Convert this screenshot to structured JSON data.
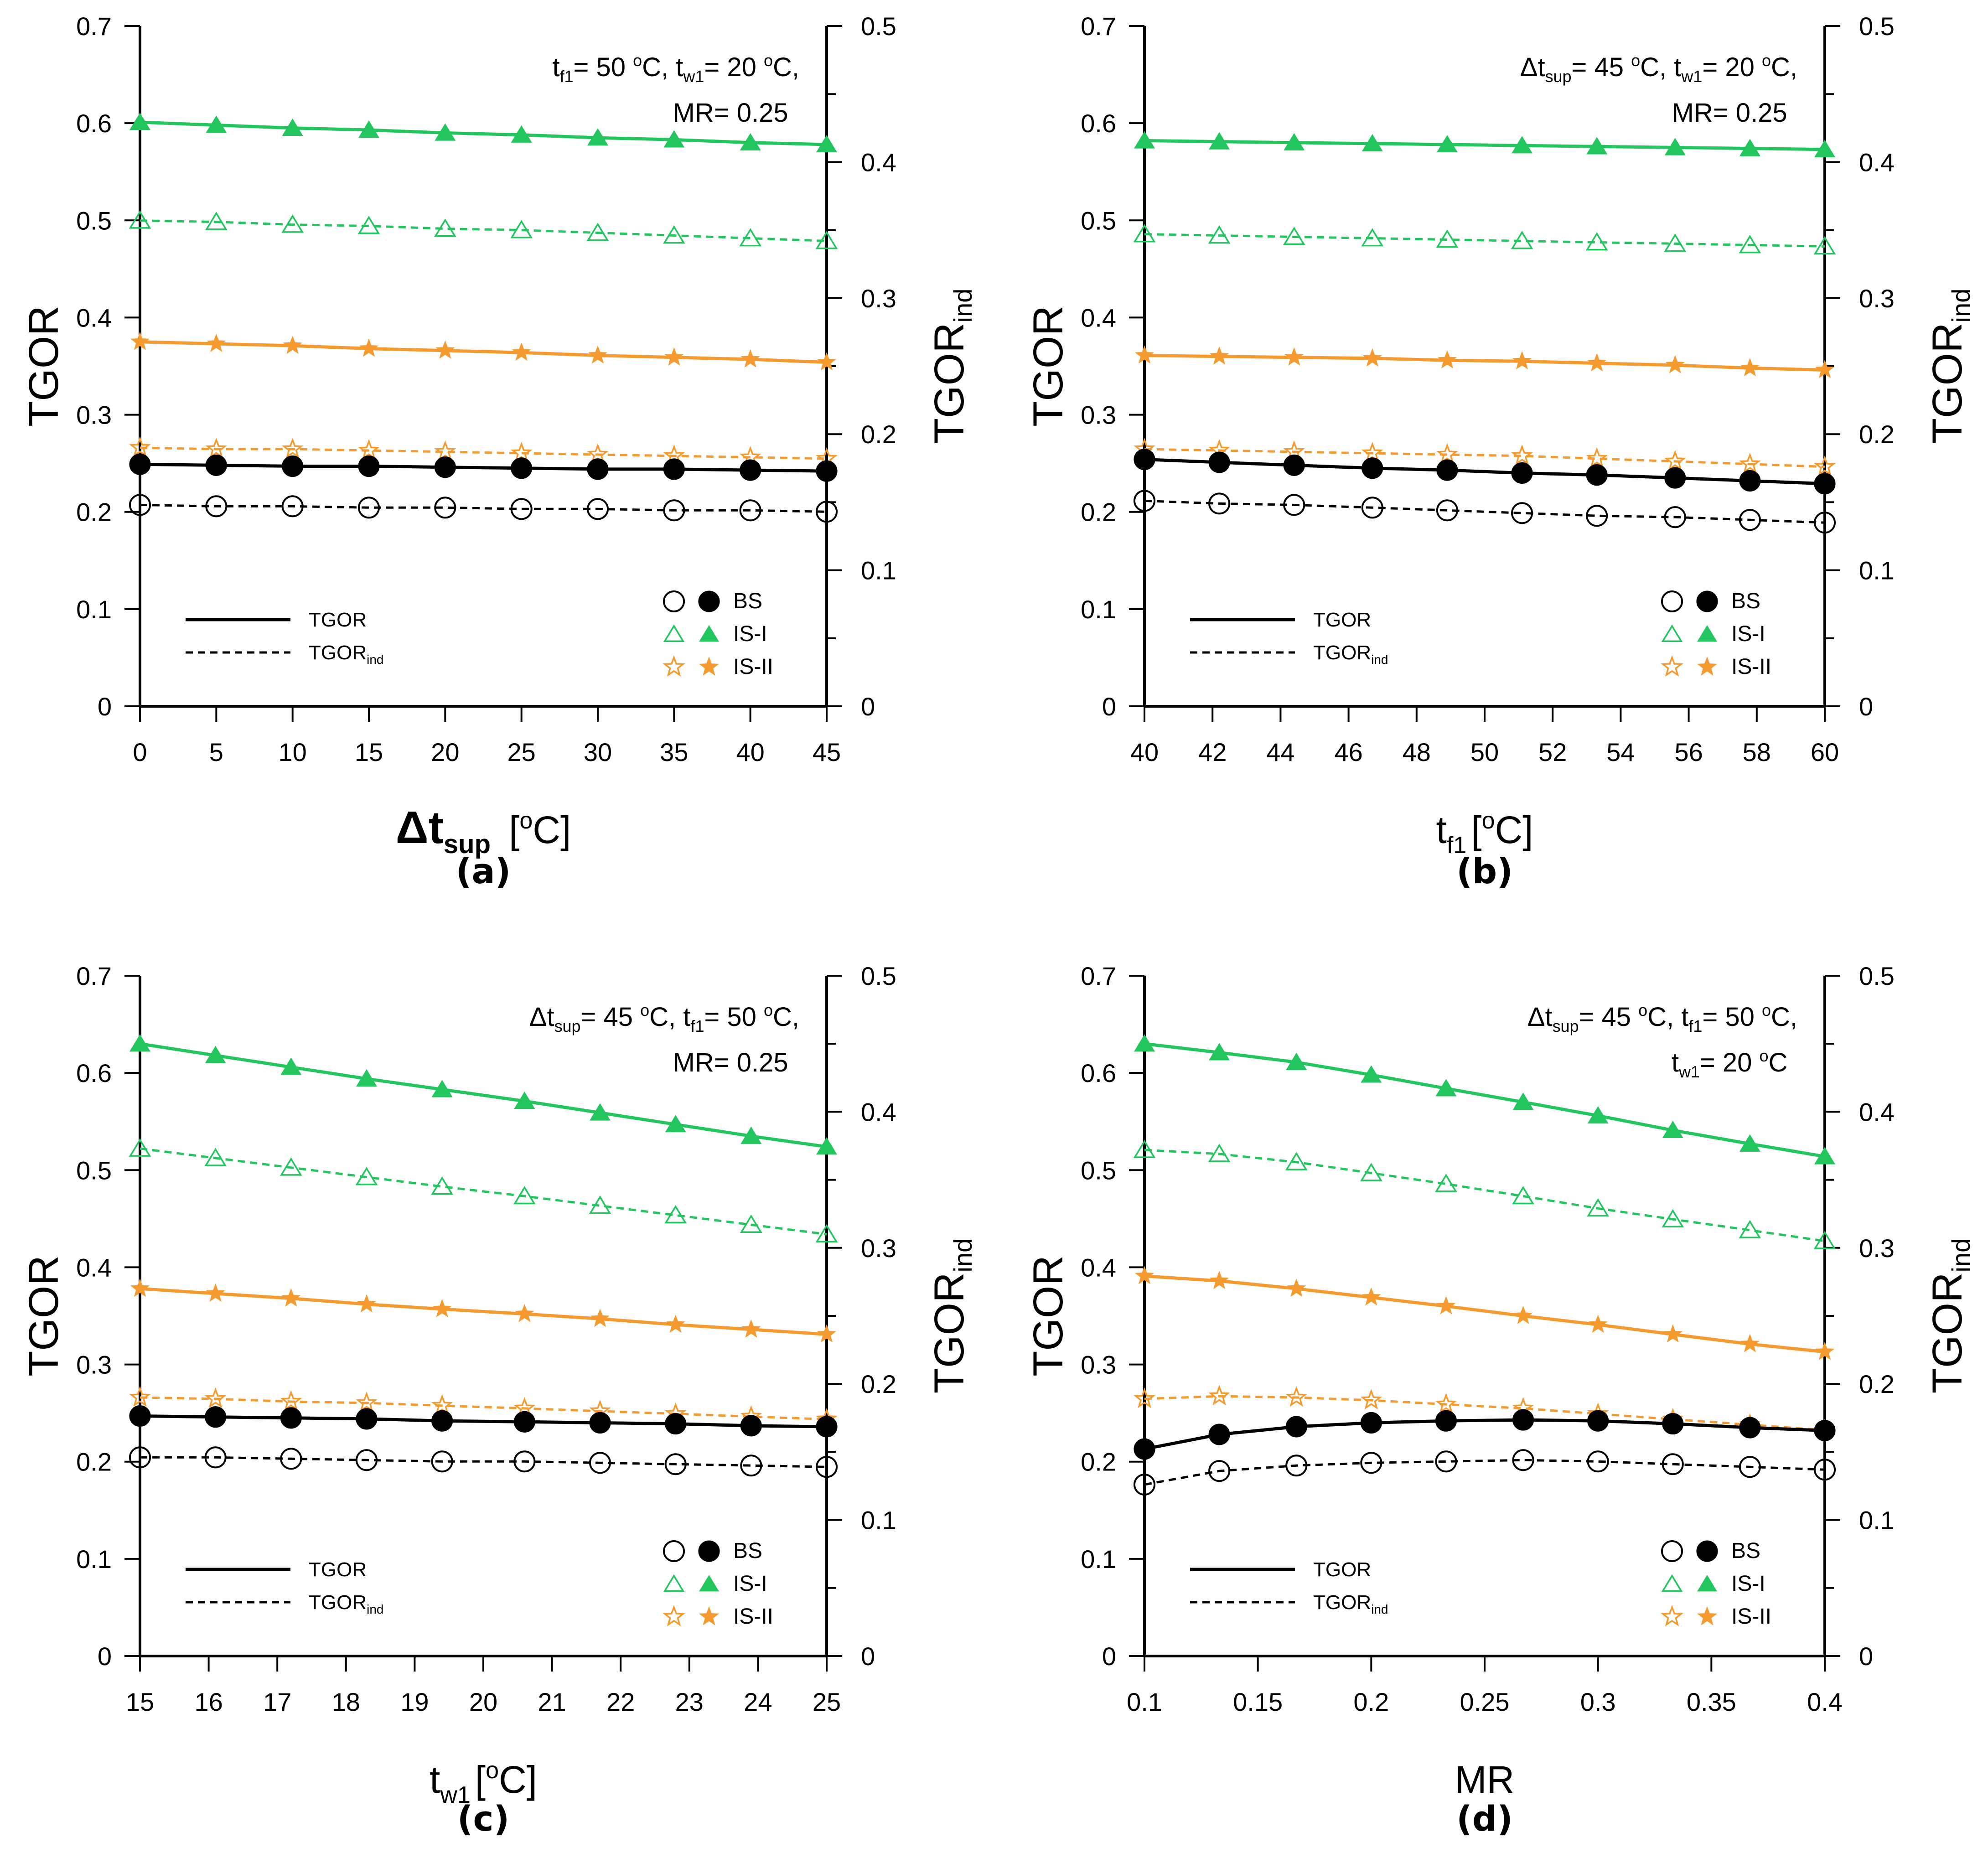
{
  "colors": {
    "bs": "#000000",
    "is1": "#22c55e",
    "is2": "#f59a2f",
    "axis": "#000000"
  },
  "legend": {
    "line_items": [
      "TGOR",
      "TGOR"
    ],
    "line_sub": "ind",
    "marker_items": [
      "BS",
      "IS-I",
      "IS-II"
    ]
  },
  "chart_data": [
    {
      "panel": "a",
      "type": "line",
      "title": "(a)",
      "xlabel": "Δt",
      "xlabel_sub": "sup",
      "xlabel_unit": "[",
      "xlabel_unit_sup": "o",
      "xlabel_unit_end": "C]",
      "ylabel": "TGOR",
      "y2label": "TGOR",
      "y2label_sub": "ind",
      "xlim": [
        0,
        45
      ],
      "ylim": [
        0,
        0.7
      ],
      "y2lim": [
        0,
        0.5
      ],
      "x_ticks": [
        "0",
        "5",
        "10",
        "15",
        "20",
        "25",
        "30",
        "35",
        "40",
        "45"
      ],
      "y_ticks": [
        "0",
        "0.1",
        "0.2",
        "0.3",
        "0.4",
        "0.5",
        "0.6",
        "0.7"
      ],
      "y2_ticks": [
        "0",
        "0.1",
        "0.2",
        "0.3",
        "0.4",
        "0.5"
      ],
      "annotation": {
        "line1": [
          {
            "t": "t"
          },
          {
            "t": "f1",
            "sub": true
          },
          {
            "t": "= 50 "
          },
          {
            "t": "o",
            "sup": true
          },
          {
            "t": "C, t"
          },
          {
            "t": "w1",
            "sub": true
          },
          {
            "t": "= 20 "
          },
          {
            "t": "o",
            "sup": true
          },
          {
            "t": "C,"
          }
        ],
        "line2": [
          {
            "t": "MR= 0.25"
          }
        ]
      },
      "x": [
        0,
        5,
        10,
        15,
        20,
        25,
        30,
        35,
        40,
        45
      ],
      "series": [
        {
          "name": "IS-I",
          "metric": "TGOR",
          "values": [
            0.601,
            0.598,
            0.595,
            0.593,
            0.59,
            0.588,
            0.585,
            0.583,
            0.58,
            0.578
          ]
        },
        {
          "name": "IS-I",
          "metric": "TGOR_ind",
          "values": [
            0.357,
            0.356,
            0.354,
            0.353,
            0.351,
            0.35,
            0.348,
            0.346,
            0.344,
            0.342
          ]
        },
        {
          "name": "IS-II",
          "metric": "TGOR",
          "values": [
            0.375,
            0.373,
            0.371,
            0.368,
            0.366,
            0.364,
            0.361,
            0.359,
            0.357,
            0.354
          ]
        },
        {
          "name": "IS-II",
          "metric": "TGOR_ind",
          "values": [
            0.19,
            0.189,
            0.189,
            0.188,
            0.187,
            0.186,
            0.185,
            0.184,
            0.183,
            0.182
          ]
        },
        {
          "name": "BS",
          "metric": "TGOR",
          "values": [
            0.249,
            0.248,
            0.247,
            0.247,
            0.246,
            0.245,
            0.244,
            0.244,
            0.243,
            0.242
          ]
        },
        {
          "name": "BS",
          "metric": "TGOR_ind",
          "values": [
            0.148,
            0.147,
            0.147,
            0.146,
            0.146,
            0.145,
            0.145,
            0.144,
            0.144,
            0.143
          ]
        }
      ]
    },
    {
      "panel": "b",
      "type": "line",
      "title": "(b)",
      "xlabel": "t",
      "xlabel_sub": "f1",
      "xlabel_unit": "[",
      "xlabel_unit_sup": "o",
      "xlabel_unit_end": "C]",
      "ylabel": "TGOR",
      "y2label": "TGOR",
      "y2label_sub": "ind",
      "xlim": [
        40,
        60
      ],
      "ylim": [
        0,
        0.7
      ],
      "y2lim": [
        0,
        0.5
      ],
      "x_ticks": [
        "40",
        "42",
        "44",
        "46",
        "48",
        "50",
        "52",
        "54",
        "56",
        "58",
        "60"
      ],
      "y_ticks": [
        "0",
        "0.1",
        "0.2",
        "0.3",
        "0.4",
        "0.5",
        "0.6",
        "0.7"
      ],
      "y2_ticks": [
        "0",
        "0.1",
        "0.2",
        "0.3",
        "0.4",
        "0.5"
      ],
      "annotation": {
        "line1": [
          {
            "t": "Δt"
          },
          {
            "t": "sup",
            "sub": true
          },
          {
            "t": "= 45 "
          },
          {
            "t": "o",
            "sup": true
          },
          {
            "t": "C, t"
          },
          {
            "t": "w1",
            "sub": true
          },
          {
            "t": "= 20 "
          },
          {
            "t": "o",
            "sup": true
          },
          {
            "t": "C,"
          }
        ],
        "line2": [
          {
            "t": "MR= 0.25"
          }
        ]
      },
      "x": [
        40,
        42.2,
        44.4,
        46.7,
        48.9,
        51.1,
        53.3,
        55.6,
        57.8,
        60
      ],
      "series": [
        {
          "name": "IS-I",
          "metric": "TGOR",
          "values": [
            0.582,
            0.581,
            0.58,
            0.579,
            0.578,
            0.577,
            0.576,
            0.575,
            0.574,
            0.573
          ]
        },
        {
          "name": "IS-I",
          "metric": "TGOR_ind",
          "values": [
            0.347,
            0.346,
            0.345,
            0.344,
            0.343,
            0.342,
            0.341,
            0.34,
            0.339,
            0.338
          ]
        },
        {
          "name": "IS-II",
          "metric": "TGOR",
          "values": [
            0.361,
            0.36,
            0.359,
            0.358,
            0.356,
            0.355,
            0.353,
            0.351,
            0.348,
            0.346
          ]
        },
        {
          "name": "IS-II",
          "metric": "TGOR_ind",
          "values": [
            0.189,
            0.188,
            0.187,
            0.186,
            0.185,
            0.184,
            0.182,
            0.18,
            0.178,
            0.176
          ]
        },
        {
          "name": "BS",
          "metric": "TGOR",
          "values": [
            0.254,
            0.251,
            0.248,
            0.245,
            0.243,
            0.24,
            0.238,
            0.235,
            0.232,
            0.229
          ]
        },
        {
          "name": "BS",
          "metric": "TGOR_ind",
          "values": [
            0.151,
            0.149,
            0.148,
            0.146,
            0.144,
            0.142,
            0.14,
            0.139,
            0.137,
            0.135
          ]
        }
      ]
    },
    {
      "panel": "c",
      "type": "line",
      "title": "(c)",
      "xlabel": "t",
      "xlabel_sub": "w1",
      "xlabel_unit": "[",
      "xlabel_unit_sup": "o",
      "xlabel_unit_end": "C]",
      "ylabel": "TGOR",
      "y2label": "TGOR",
      "y2label_sub": "ind",
      "xlim": [
        15,
        25
      ],
      "ylim": [
        0,
        0.7
      ],
      "y2lim": [
        0,
        0.5
      ],
      "x_ticks": [
        "15",
        "16",
        "17",
        "18",
        "19",
        "20",
        "21",
        "22",
        "23",
        "24",
        "25"
      ],
      "y_ticks": [
        "0",
        "0.1",
        "0.2",
        "0.3",
        "0.4",
        "0.5",
        "0.6",
        "0.7"
      ],
      "y2_ticks": [
        "0",
        "0.1",
        "0.2",
        "0.3",
        "0.4",
        "0.5"
      ],
      "annotation": {
        "line1": [
          {
            "t": "Δt"
          },
          {
            "t": "sup",
            "sub": true
          },
          {
            "t": "= 45 "
          },
          {
            "t": "o",
            "sup": true
          },
          {
            "t": "C, t"
          },
          {
            "t": "f1",
            "sub": true
          },
          {
            "t": "= 50 "
          },
          {
            "t": "o",
            "sup": true
          },
          {
            "t": "C,"
          }
        ],
        "line2": [
          {
            "t": "MR= 0.25"
          }
        ]
      },
      "x": [
        15,
        16.1,
        17.2,
        18.3,
        19.4,
        20.6,
        21.7,
        22.8,
        23.9,
        25
      ],
      "series": [
        {
          "name": "IS-I",
          "metric": "TGOR",
          "values": [
            0.63,
            0.618,
            0.606,
            0.594,
            0.583,
            0.571,
            0.559,
            0.547,
            0.535,
            0.524
          ]
        },
        {
          "name": "IS-I",
          "metric": "TGOR_ind",
          "values": [
            0.373,
            0.366,
            0.359,
            0.352,
            0.345,
            0.338,
            0.331,
            0.324,
            0.317,
            0.31
          ]
        },
        {
          "name": "IS-II",
          "metric": "TGOR",
          "values": [
            0.378,
            0.373,
            0.368,
            0.362,
            0.357,
            0.352,
            0.347,
            0.341,
            0.336,
            0.331
          ]
        },
        {
          "name": "IS-II",
          "metric": "TGOR_ind",
          "values": [
            0.19,
            0.189,
            0.187,
            0.186,
            0.184,
            0.182,
            0.18,
            0.178,
            0.176,
            0.174
          ]
        },
        {
          "name": "BS",
          "metric": "TGOR",
          "values": [
            0.247,
            0.246,
            0.245,
            0.244,
            0.242,
            0.241,
            0.24,
            0.239,
            0.237,
            0.236
          ]
        },
        {
          "name": "BS",
          "metric": "TGOR_ind",
          "values": [
            0.146,
            0.146,
            0.145,
            0.144,
            0.143,
            0.143,
            0.142,
            0.141,
            0.14,
            0.139
          ]
        }
      ]
    },
    {
      "panel": "d",
      "type": "line",
      "title": "(d)",
      "xlabel": "MR",
      "ylabel": "TGOR",
      "y2label": "TGOR",
      "y2label_sub": "ind",
      "xlim": [
        0.1,
        0.4
      ],
      "ylim": [
        0,
        0.7
      ],
      "y2lim": [
        0,
        0.5
      ],
      "x_ticks": [
        "0.1",
        "0.15",
        "0.2",
        "0.25",
        "0.3",
        "0.35",
        "0.4"
      ],
      "y_ticks": [
        "0",
        "0.1",
        "0.2",
        "0.3",
        "0.4",
        "0.5",
        "0.6",
        "0.7"
      ],
      "y2_ticks": [
        "0",
        "0.1",
        "0.2",
        "0.3",
        "0.4",
        "0.5"
      ],
      "annotation": {
        "line1": [
          {
            "t": "Δt"
          },
          {
            "t": "sup",
            "sub": true
          },
          {
            "t": "= 45 "
          },
          {
            "t": "o",
            "sup": true
          },
          {
            "t": "C, t"
          },
          {
            "t": "f1",
            "sub": true
          },
          {
            "t": "= 50 "
          },
          {
            "t": "o",
            "sup": true
          },
          {
            "t": "C,"
          }
        ],
        "line2": [
          {
            "t": "t"
          },
          {
            "t": "w1",
            "sub": true
          },
          {
            "t": "= 20 "
          },
          {
            "t": "o",
            "sup": true
          },
          {
            "t": "C"
          }
        ]
      },
      "x": [
        0.1,
        0.133,
        0.167,
        0.2,
        0.233,
        0.267,
        0.3,
        0.333,
        0.367,
        0.4
      ],
      "series": [
        {
          "name": "IS-I",
          "metric": "TGOR",
          "values": [
            0.63,
            0.621,
            0.611,
            0.598,
            0.584,
            0.57,
            0.556,
            0.541,
            0.527,
            0.514
          ]
        },
        {
          "name": "IS-I",
          "metric": "TGOR_ind",
          "values": [
            0.372,
            0.369,
            0.363,
            0.355,
            0.347,
            0.338,
            0.329,
            0.321,
            0.313,
            0.305
          ]
        },
        {
          "name": "IS-II",
          "metric": "TGOR",
          "values": [
            0.391,
            0.386,
            0.378,
            0.369,
            0.36,
            0.35,
            0.341,
            0.331,
            0.321,
            0.313
          ]
        },
        {
          "name": "IS-II",
          "metric": "TGOR_ind",
          "values": [
            0.189,
            0.191,
            0.19,
            0.188,
            0.185,
            0.182,
            0.178,
            0.174,
            0.17,
            0.166
          ]
        },
        {
          "name": "BS",
          "metric": "TGOR",
          "values": [
            0.213,
            0.228,
            0.236,
            0.24,
            0.242,
            0.243,
            0.242,
            0.239,
            0.235,
            0.232
          ]
        },
        {
          "name": "BS",
          "metric": "TGOR_ind",
          "values": [
            0.126,
            0.136,
            0.14,
            0.142,
            0.143,
            0.144,
            0.143,
            0.141,
            0.139,
            0.137
          ]
        }
      ]
    }
  ]
}
